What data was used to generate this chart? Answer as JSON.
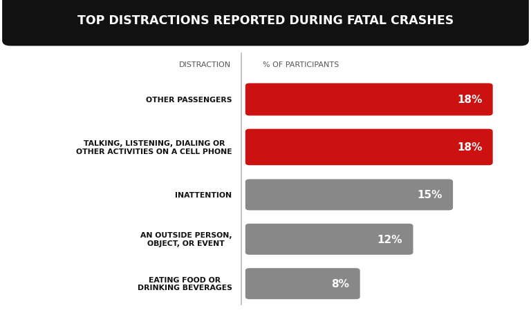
{
  "title": "TOP DISTRACTIONS REPORTED DURING FATAL CRASHES",
  "col_left_label": "DISTRACTION",
  "col_right_label": "% OF PARTICIPANTS",
  "categories": [
    "OTHER PASSENGERS",
    "TALKING, LISTENING, DIALING OR\nOTHER ACTIVITIES ON A CELL PHONE",
    "INATTENTION",
    "AN OUTSIDE PERSON,\nOBJECT, OR EVENT",
    "EATING FOOD OR\nDRINKING BEVERAGES"
  ],
  "values": [
    18,
    18,
    15,
    12,
    8
  ],
  "bar_colors": [
    "#cc1111",
    "#cc1111",
    "#888888",
    "#888888",
    "#888888"
  ],
  "title_bg": "#111111",
  "title_color": "#ffffff",
  "label_color": "#111111",
  "value_color": "#ffffff",
  "background_color": "#ffffff",
  "divider_color": "#bbbbbb",
  "bar_max": 20
}
